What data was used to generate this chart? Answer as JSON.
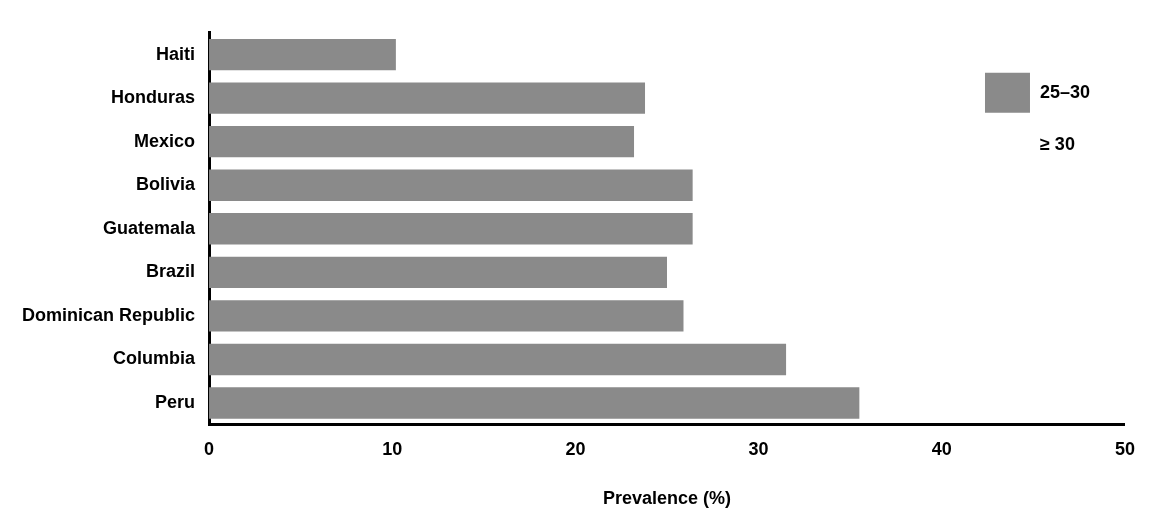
{
  "chart_data": {
    "type": "bar",
    "orientation": "horizontal",
    "xlabel": "Prevalence (%)",
    "categories": [
      "Haiti",
      "Honduras",
      "Mexico",
      "Bolivia",
      "Guatemala",
      "Brazil",
      "Dominican Republic",
      "Columbia",
      "Peru"
    ],
    "series": [
      {
        "name": "25–30",
        "color": "#8a8a8a",
        "values": [
          10.2,
          23.8,
          23.2,
          26.4,
          26.4,
          25.0,
          25.9,
          31.5,
          35.5
        ]
      },
      {
        "name": "≥ 30",
        "values": [
          null,
          null,
          null,
          null,
          null,
          null,
          null,
          null,
          null
        ]
      }
    ],
    "xlim": [
      0,
      50
    ],
    "xticks": [
      0,
      10,
      20,
      30,
      40,
      50
    ],
    "grid": false,
    "legend": "top right"
  }
}
